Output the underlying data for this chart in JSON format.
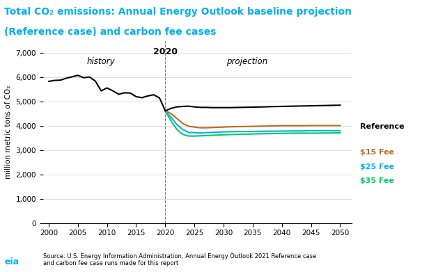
{
  "title_line1": "Total CO₂ emissions: Annual Energy Outlook baseline projection",
  "title_line2": "(Reference case) and carbon fee cases",
  "ylabel": "million metric tons of CO₂",
  "title_color": "#00b0f0",
  "title_bg_color": "#000000",
  "subtitle_bg_color": "#ffffff",
  "ylabel_fontsize": 8,
  "ylim": [
    0,
    7500
  ],
  "yticks": [
    0,
    1000,
    2000,
    3000,
    4000,
    5000,
    6000,
    7000
  ],
  "xlim": [
    1999,
    2052
  ],
  "xticks": [
    2000,
    2005,
    2010,
    2015,
    2020,
    2025,
    2030,
    2035,
    2040,
    2045,
    2050
  ],
  "split_year": 2020,
  "history_label": "history",
  "projection_label": "projection",
  "split_label": "2020",
  "reference_color": "#000000",
  "fee15_color": "#c0691a",
  "fee25_color": "#00b0f0",
  "fee35_color": "#00cc66",
  "reference_label": "Reference",
  "fee15_label": "$15 Fee",
  "fee25_label": "$25 Fee",
  "fee35_label": "$35 Fee",
  "source_text": "Source: U.S. Energy Information Administration, Annual Energy Outlook 2021 Reference case\nand carbon fee case runs made for this report",
  "history_years": [
    2000,
    2001,
    2002,
    2003,
    2004,
    2005,
    2006,
    2007,
    2008,
    2009,
    2010,
    2011,
    2012,
    2013,
    2014,
    2015,
    2016,
    2017,
    2018,
    2019,
    2020
  ],
  "history_values": [
    5830,
    5870,
    5880,
    5960,
    6020,
    6080,
    5980,
    6010,
    5840,
    5440,
    5560,
    5440,
    5300,
    5360,
    5350,
    5200,
    5160,
    5230,
    5280,
    5150,
    4620
  ],
  "ref_years": [
    2020,
    2021,
    2022,
    2023,
    2024,
    2025,
    2026,
    2027,
    2028,
    2029,
    2030,
    2031,
    2032,
    2033,
    2034,
    2035,
    2036,
    2037,
    2038,
    2039,
    2040,
    2041,
    2042,
    2043,
    2044,
    2045,
    2046,
    2047,
    2048,
    2049,
    2050
  ],
  "ref_values": [
    4620,
    4720,
    4780,
    4800,
    4810,
    4780,
    4760,
    4760,
    4750,
    4750,
    4750,
    4750,
    4755,
    4760,
    4765,
    4770,
    4775,
    4780,
    4790,
    4795,
    4800,
    4805,
    4810,
    4815,
    4820,
    4825,
    4830,
    4835,
    4840,
    4845,
    4850
  ],
  "fee15_years": [
    2020,
    2021,
    2022,
    2023,
    2024,
    2025,
    2026,
    2027,
    2028,
    2029,
    2030,
    2031,
    2032,
    2033,
    2034,
    2035,
    2036,
    2037,
    2038,
    2039,
    2040,
    2041,
    2042,
    2043,
    2044,
    2045,
    2046,
    2047,
    2048,
    2049,
    2050
  ],
  "fee15_values": [
    4620,
    4500,
    4300,
    4100,
    3980,
    3950,
    3920,
    3920,
    3930,
    3940,
    3950,
    3960,
    3965,
    3970,
    3975,
    3980,
    3985,
    3990,
    3995,
    4000,
    4005,
    4005,
    4005,
    4005,
    4005,
    4010,
    4010,
    4010,
    4010,
    4010,
    4010
  ],
  "fee25_years": [
    2020,
    2021,
    2022,
    2023,
    2024,
    2025,
    2026,
    2027,
    2028,
    2029,
    2030,
    2031,
    2032,
    2033,
    2034,
    2035,
    2036,
    2037,
    2038,
    2039,
    2040,
    2041,
    2042,
    2043,
    2044,
    2045,
    2046,
    2047,
    2048,
    2049,
    2050
  ],
  "fee25_values": [
    4620,
    4350,
    4050,
    3850,
    3730,
    3720,
    3710,
    3720,
    3730,
    3740,
    3750,
    3755,
    3760,
    3765,
    3765,
    3770,
    3775,
    3775,
    3780,
    3780,
    3785,
    3785,
    3790,
    3790,
    3795,
    3800,
    3800,
    3800,
    3800,
    3800,
    3800
  ],
  "fee35_years": [
    2020,
    2021,
    2022,
    2023,
    2024,
    2025,
    2026,
    2027,
    2028,
    2029,
    2030,
    2031,
    2032,
    2033,
    2034,
    2035,
    2036,
    2037,
    2038,
    2039,
    2040,
    2041,
    2042,
    2043,
    2044,
    2045,
    2046,
    2047,
    2048,
    2049,
    2050
  ],
  "fee35_values": [
    4620,
    4200,
    3850,
    3650,
    3580,
    3580,
    3590,
    3600,
    3610,
    3620,
    3630,
    3640,
    3650,
    3655,
    3660,
    3665,
    3670,
    3675,
    3680,
    3685,
    3690,
    3695,
    3700,
    3700,
    3700,
    3700,
    3700,
    3705,
    3705,
    3710,
    3710
  ]
}
